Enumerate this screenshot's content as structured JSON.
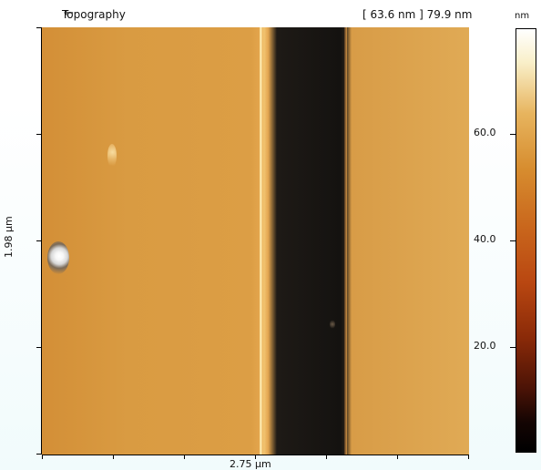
{
  "panel": {
    "title": "Topography",
    "range_text": "[ 63.6 nm ] 79.9 nm"
  },
  "axes": {
    "x_label": "2.75 µm",
    "y_label": "1.98 µm"
  },
  "colorbar": {
    "unit": "nm",
    "ticks": [
      {
        "value": 60.0,
        "label": "60.0"
      },
      {
        "value": 40.0,
        "label": "40.0"
      },
      {
        "value": 20.0,
        "label": "20.0"
      }
    ]
  },
  "colors": {
    "surface": "#d99b42",
    "trench": "#141210",
    "highlight": "#f7f7f7"
  },
  "icons": {
    "title_glyph": "left-arrow-icon"
  }
}
